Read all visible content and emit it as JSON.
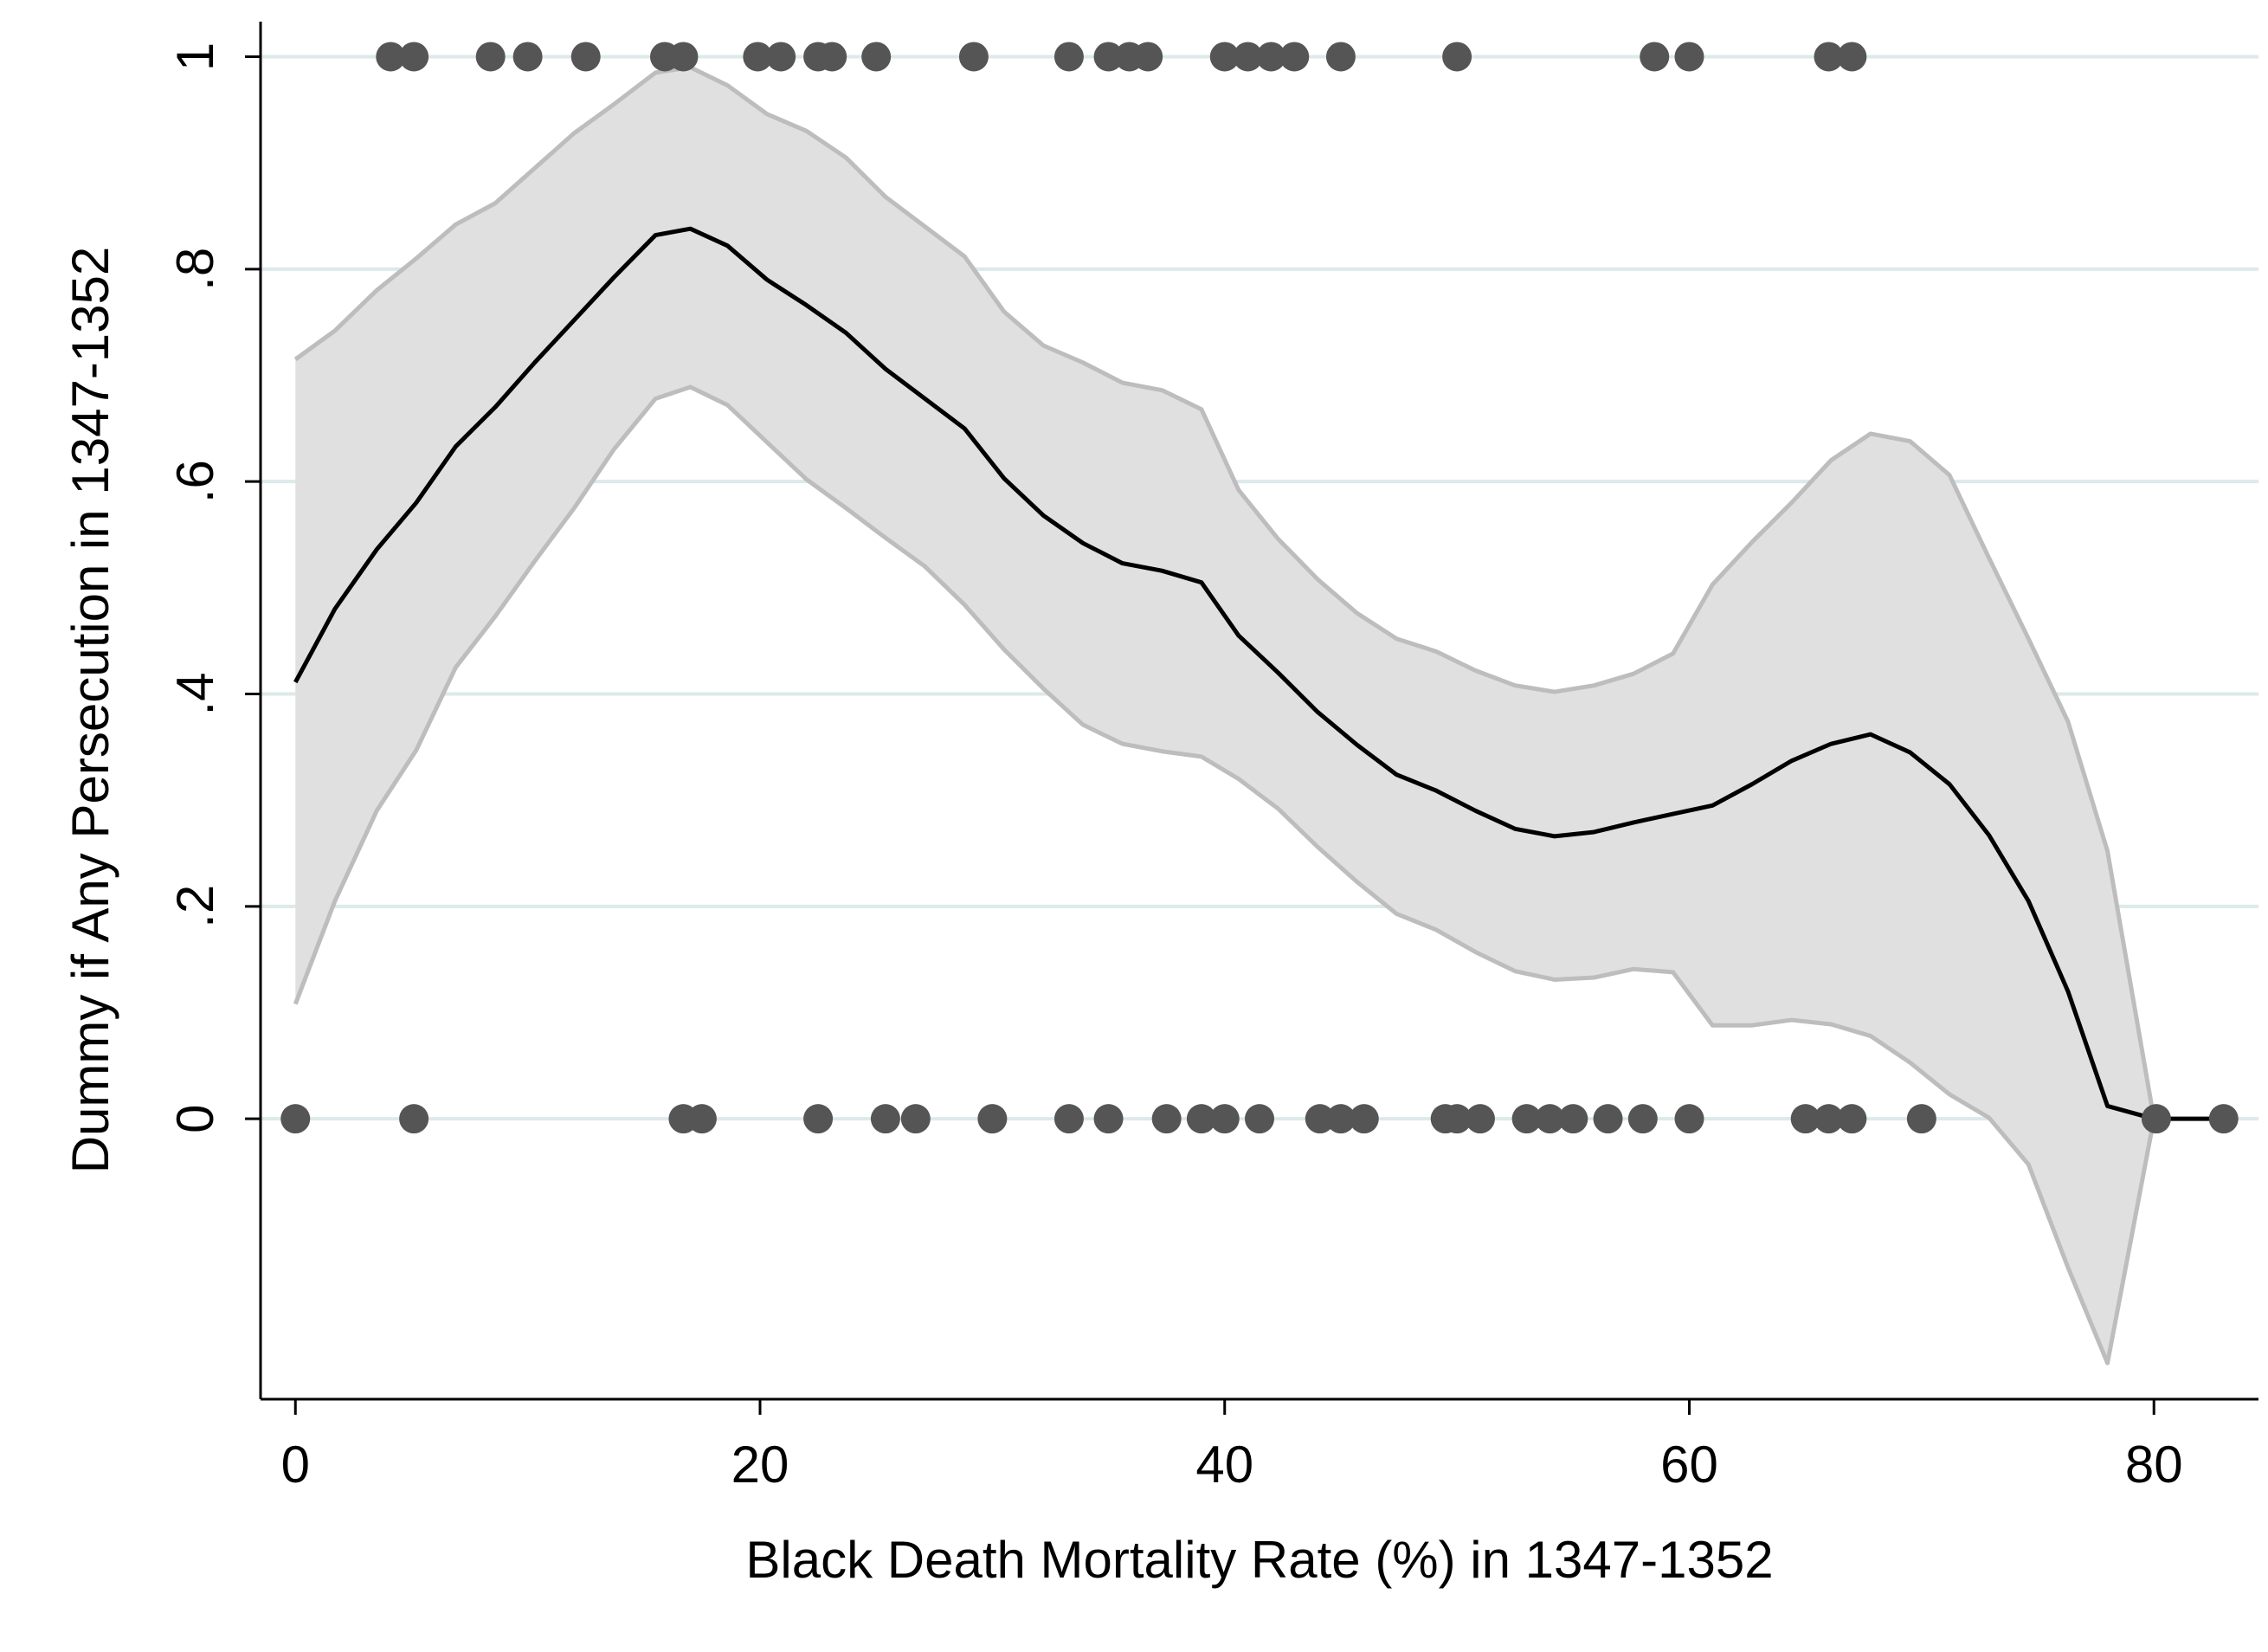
{
  "chart_data": {
    "type": "line",
    "x_label": "Black Death Mortality Rate (%) in 1347-1352",
    "y_label": "Dummy if Any Persecution in 1347-1352",
    "xlim": [
      -1.5,
      84.5
    ],
    "xticks": [
      0,
      20,
      40,
      60,
      80
    ],
    "ylim": [
      -0.264,
      1.033
    ],
    "yticks": [
      0,
      {
        "value": 0.2,
        "label": ".2"
      },
      {
        "value": 0.4,
        "label": ".4"
      },
      {
        "value": 0.6,
        "label": ".6"
      },
      {
        "value": 0.8,
        "label": ".8"
      },
      1
    ],
    "grid": true,
    "fit": {
      "color": "#000000",
      "band_color": "#e0e0e0",
      "band_edge_color": "#bdbdbd",
      "x": [
        0,
        1.7,
        3.5,
        5.2,
        6.9,
        8.6,
        10.3,
        12,
        13.7,
        15.5,
        17,
        18.6,
        20.3,
        22,
        23.7,
        25.4,
        27.1,
        28.8,
        30.5,
        32.2,
        33.9,
        35.6,
        37.3,
        39,
        40.6,
        42.3,
        44,
        45.7,
        47.4,
        49.1,
        50.8,
        52.5,
        54.2,
        55.9,
        57.6,
        59.3,
        61,
        62.7,
        64.4,
        66.1,
        67.8,
        69.5,
        71.2,
        72.9,
        74.6,
        76.3,
        78,
        80,
        83
      ],
      "values": [
        0.411,
        0.48,
        0.536,
        0.58,
        0.633,
        0.67,
        0.712,
        0.752,
        0.792,
        0.832,
        0.838,
        0.822,
        0.79,
        0.766,
        0.74,
        0.706,
        0.678,
        0.65,
        0.603,
        0.568,
        0.542,
        0.523,
        0.516,
        0.505,
        0.455,
        0.42,
        0.383,
        0.352,
        0.324,
        0.309,
        0.29,
        0.273,
        0.266,
        0.27,
        0.279,
        0.287,
        0.295,
        0.315,
        0.337,
        0.353,
        0.362,
        0.345,
        0.315,
        0.267,
        0.205,
        0.12,
        0.012,
        0,
        0
      ],
      "upper": [
        0.715,
        0.742,
        0.78,
        0.81,
        0.842,
        0.862,
        0.895,
        0.928,
        0.955,
        0.985,
        0.99,
        0.973,
        0.946,
        0.93,
        0.905,
        0.868,
        0.84,
        0.812,
        0.76,
        0.728,
        0.712,
        0.693,
        0.686,
        0.668,
        0.592,
        0.546,
        0.508,
        0.476,
        0.452,
        0.44,
        0.422,
        0.408,
        0.402,
        0.408,
        0.419,
        0.438,
        0.503,
        0.543,
        0.58,
        0.62,
        0.645,
        0.638,
        0.606,
        0.528,
        0.452,
        0.374,
        0.252,
        0,
        null
      ],
      "lower": [
        0.108,
        0.205,
        0.29,
        0.347,
        0.425,
        0.473,
        0.525,
        0.575,
        0.63,
        0.678,
        0.689,
        0.672,
        0.637,
        0.602,
        0.575,
        0.547,
        0.52,
        0.484,
        0.442,
        0.405,
        0.371,
        0.353,
        0.346,
        0.341,
        0.32,
        0.292,
        0.256,
        0.223,
        0.193,
        0.178,
        0.157,
        0.139,
        0.131,
        0.133,
        0.141,
        0.138,
        0.088,
        0.088,
        0.093,
        0.089,
        0.078,
        0.053,
        0.023,
        0.001,
        -0.043,
        -0.14,
        -0.23,
        0,
        null
      ]
    },
    "points": {
      "color": "#555555",
      "x": [
        4.1,
        5.1,
        8.4,
        10,
        12.5,
        15.9,
        16.7,
        19.9,
        20.9,
        22.5,
        23.1,
        25,
        29.2,
        33.3,
        35,
        35.9,
        36.7,
        40,
        41,
        42,
        43,
        45,
        50,
        58.5,
        60,
        66,
        67,
        0,
        5.1,
        16.7,
        17.5,
        22.5,
        25.4,
        26.7,
        30,
        33.3,
        35,
        37.5,
        39,
        40,
        41.5,
        44.1,
        45,
        46,
        49.5,
        50,
        51,
        53,
        54,
        55,
        56.5,
        58,
        60,
        65,
        66,
        67,
        70,
        80.1,
        83
      ],
      "values": [
        1,
        1,
        1,
        1,
        1,
        1,
        1,
        1,
        1,
        1,
        1,
        1,
        1,
        1,
        1,
        1,
        1,
        1,
        1,
        1,
        1,
        1,
        1,
        1,
        1,
        1,
        1,
        0,
        0,
        0,
        0,
        0,
        0,
        0,
        0,
        0,
        0,
        0,
        0,
        0,
        0,
        0,
        0,
        0,
        0,
        0,
        0,
        0,
        0,
        0,
        0,
        0,
        0,
        0,
        0,
        0,
        0,
        0,
        0
      ]
    }
  }
}
